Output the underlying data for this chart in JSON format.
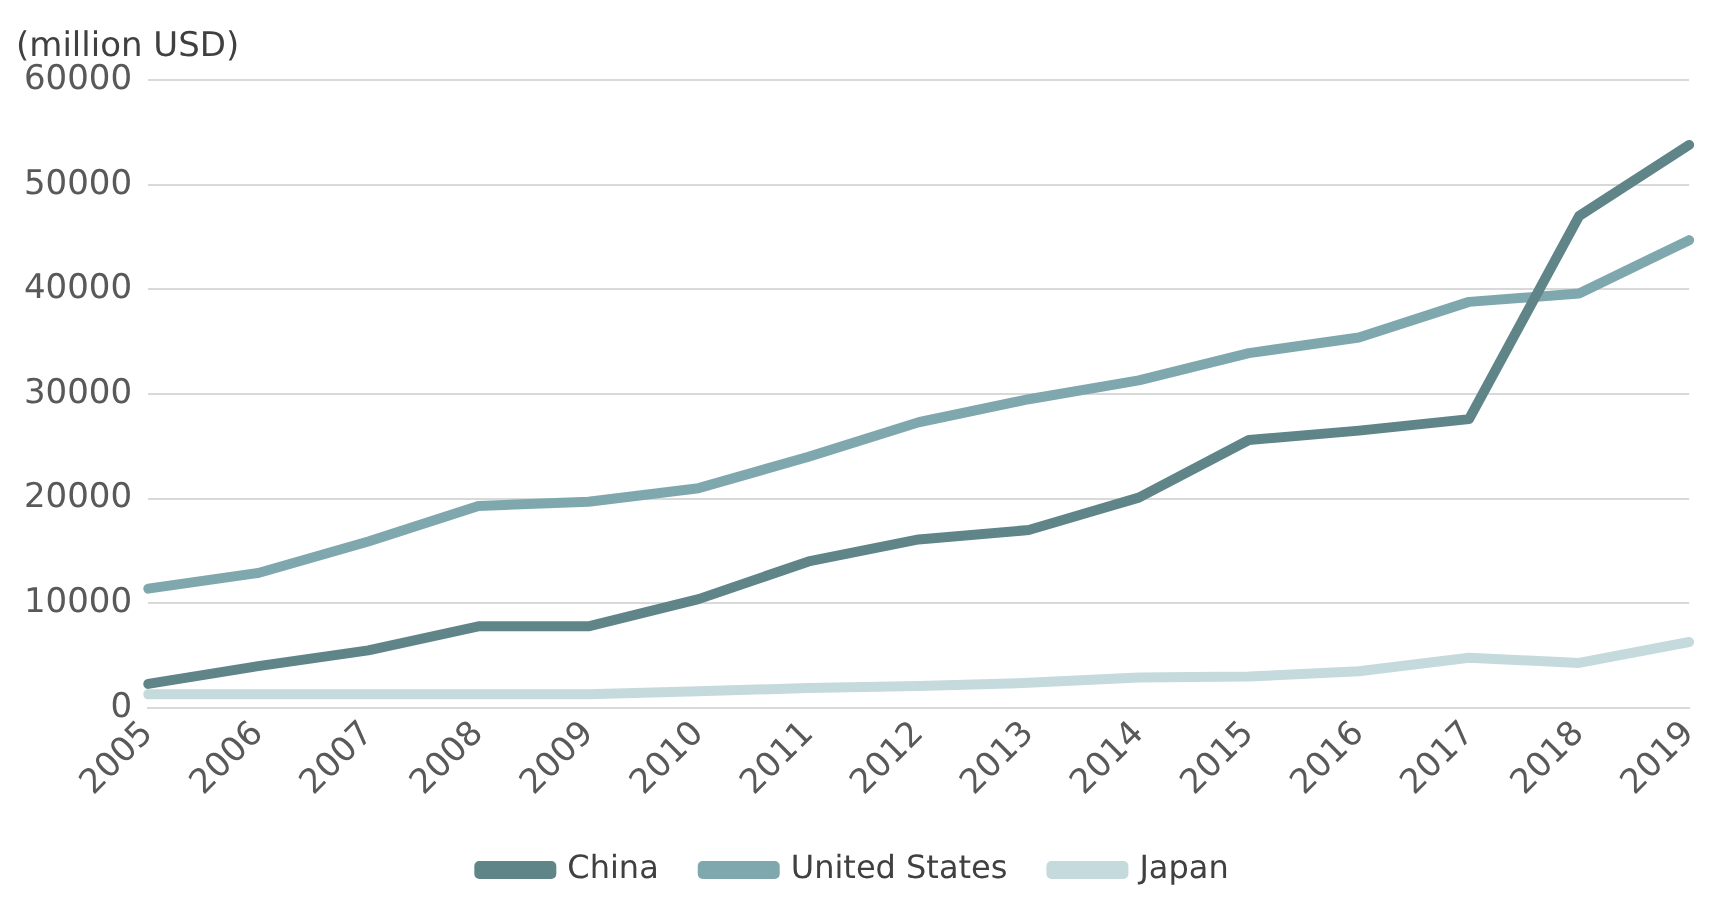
{
  "chart_data": {
    "type": "line",
    "ylabel": "(million USD)",
    "categories": [
      "2005",
      "2006",
      "2007",
      "2008",
      "2009",
      "2010",
      "2011",
      "2012",
      "2013",
      "2014",
      "2015",
      "2016",
      "2017",
      "2018",
      "2019"
    ],
    "series": [
      {
        "name": "China",
        "color": "#5f8589",
        "values": [
          2300,
          4000,
          5500,
          7800,
          7800,
          10400,
          14000,
          16100,
          17000,
          20100,
          25600,
          26500,
          27600,
          47000,
          53800
        ]
      },
      {
        "name": "United States",
        "color": "#7fa8ae",
        "values": [
          11400,
          12900,
          15900,
          19300,
          19700,
          21000,
          24000,
          27300,
          29500,
          31300,
          33900,
          35400,
          38800,
          39600,
          44700
        ]
      },
      {
        "name": "Japan",
        "color": "#c5dadd",
        "values": [
          1300,
          1300,
          1300,
          1300,
          1300,
          1600,
          1900,
          2100,
          2400,
          2900,
          3000,
          3500,
          4800,
          4300,
          6300
        ]
      }
    ],
    "ylim": [
      0,
      60000
    ],
    "yticks": [
      0,
      10000,
      20000,
      30000,
      40000,
      50000,
      60000
    ],
    "grid": "y",
    "legend": "bottom",
    "marker": "none",
    "line_style": "solid"
  }
}
